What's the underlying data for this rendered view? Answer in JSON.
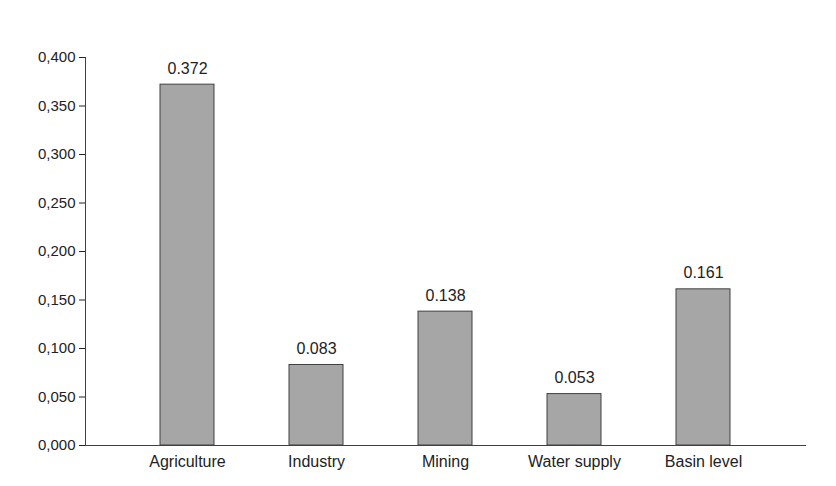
{
  "chart_data": {
    "type": "bar",
    "categories": [
      "Agriculture",
      "Industry",
      "Mining",
      "Water supply",
      "Basin level"
    ],
    "values": [
      0.372,
      0.083,
      0.138,
      0.053,
      0.161
    ],
    "color": "#a6a6a6",
    "ylim": [
      0,
      0.4
    ],
    "yticks": [
      {
        "value": 0,
        "label": "0,000"
      },
      {
        "value": 0.05,
        "label": "0,050"
      },
      {
        "value": 0.1,
        "label": "0,100"
      },
      {
        "value": 0.15,
        "label": "0,150"
      },
      {
        "value": 0.2,
        "label": "0,200"
      },
      {
        "value": 0.25,
        "label": "0,250"
      },
      {
        "value": 0.3,
        "label": "0,300"
      },
      {
        "value": 0.35,
        "label": "0,350"
      },
      {
        "value": 0.4,
        "label": "0,400"
      }
    ],
    "grid": false,
    "data_labels": true
  }
}
